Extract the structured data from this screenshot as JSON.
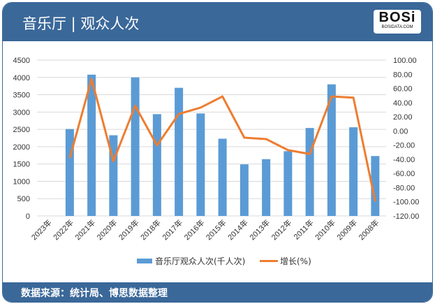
{
  "header": {
    "title": "音乐厅 | 观众人次",
    "logo_text": "BOSi",
    "logo_sub": "BOSIDATA.COM"
  },
  "footer": {
    "source": "数据来源：统计局、博思数据整理"
  },
  "colors": {
    "bar": "#5b9bd5",
    "line": "#ed7d31",
    "header": "#3a6899",
    "grid": "#d9d9d9"
  },
  "chart_data": {
    "type": "bar",
    "title": "音乐厅 | 观众人次",
    "categories": [
      "2023年",
      "2022年",
      "2021年",
      "2020年",
      "2019年",
      "2018年",
      "2017年",
      "2016年",
      "2015年",
      "2014年",
      "2013年",
      "2012年",
      "2011年",
      "2010年",
      "2009年",
      "2008年"
    ],
    "series": [
      {
        "name": "音乐厅观众人次(千人次)",
        "type": "bar",
        "axis": "left",
        "values": [
          null,
          2510,
          4080,
          2330,
          4000,
          2940,
          3700,
          2960,
          2230,
          1490,
          1640,
          1870,
          2540,
          3800,
          2560,
          1730
        ]
      },
      {
        "name": "增长(%)",
        "type": "line",
        "axis": "right",
        "values": [
          null,
          -38.5,
          73.4,
          -42.8,
          35.5,
          -20.4,
          24.0,
          33.0,
          48.7,
          -9.5,
          -11.5,
          -27.0,
          -32.6,
          48.7,
          47.0,
          -99.3
        ]
      }
    ],
    "ylim_left": [
      0,
      4500
    ],
    "yticks_left": [
      "0",
      "500",
      "1000",
      "1500",
      "2000",
      "2500",
      "3000",
      "3500",
      "4000",
      "4500"
    ],
    "ylim_right": [
      -120,
      100
    ],
    "yticks_right": [
      "-120.00",
      "-100.00",
      "-80.00",
      "-60.00",
      "-40.00",
      "-20.00",
      "0.00",
      "20.00",
      "40.00",
      "60.00",
      "80.00",
      "100.00"
    ],
    "grid": true,
    "legend": "bottom"
  }
}
